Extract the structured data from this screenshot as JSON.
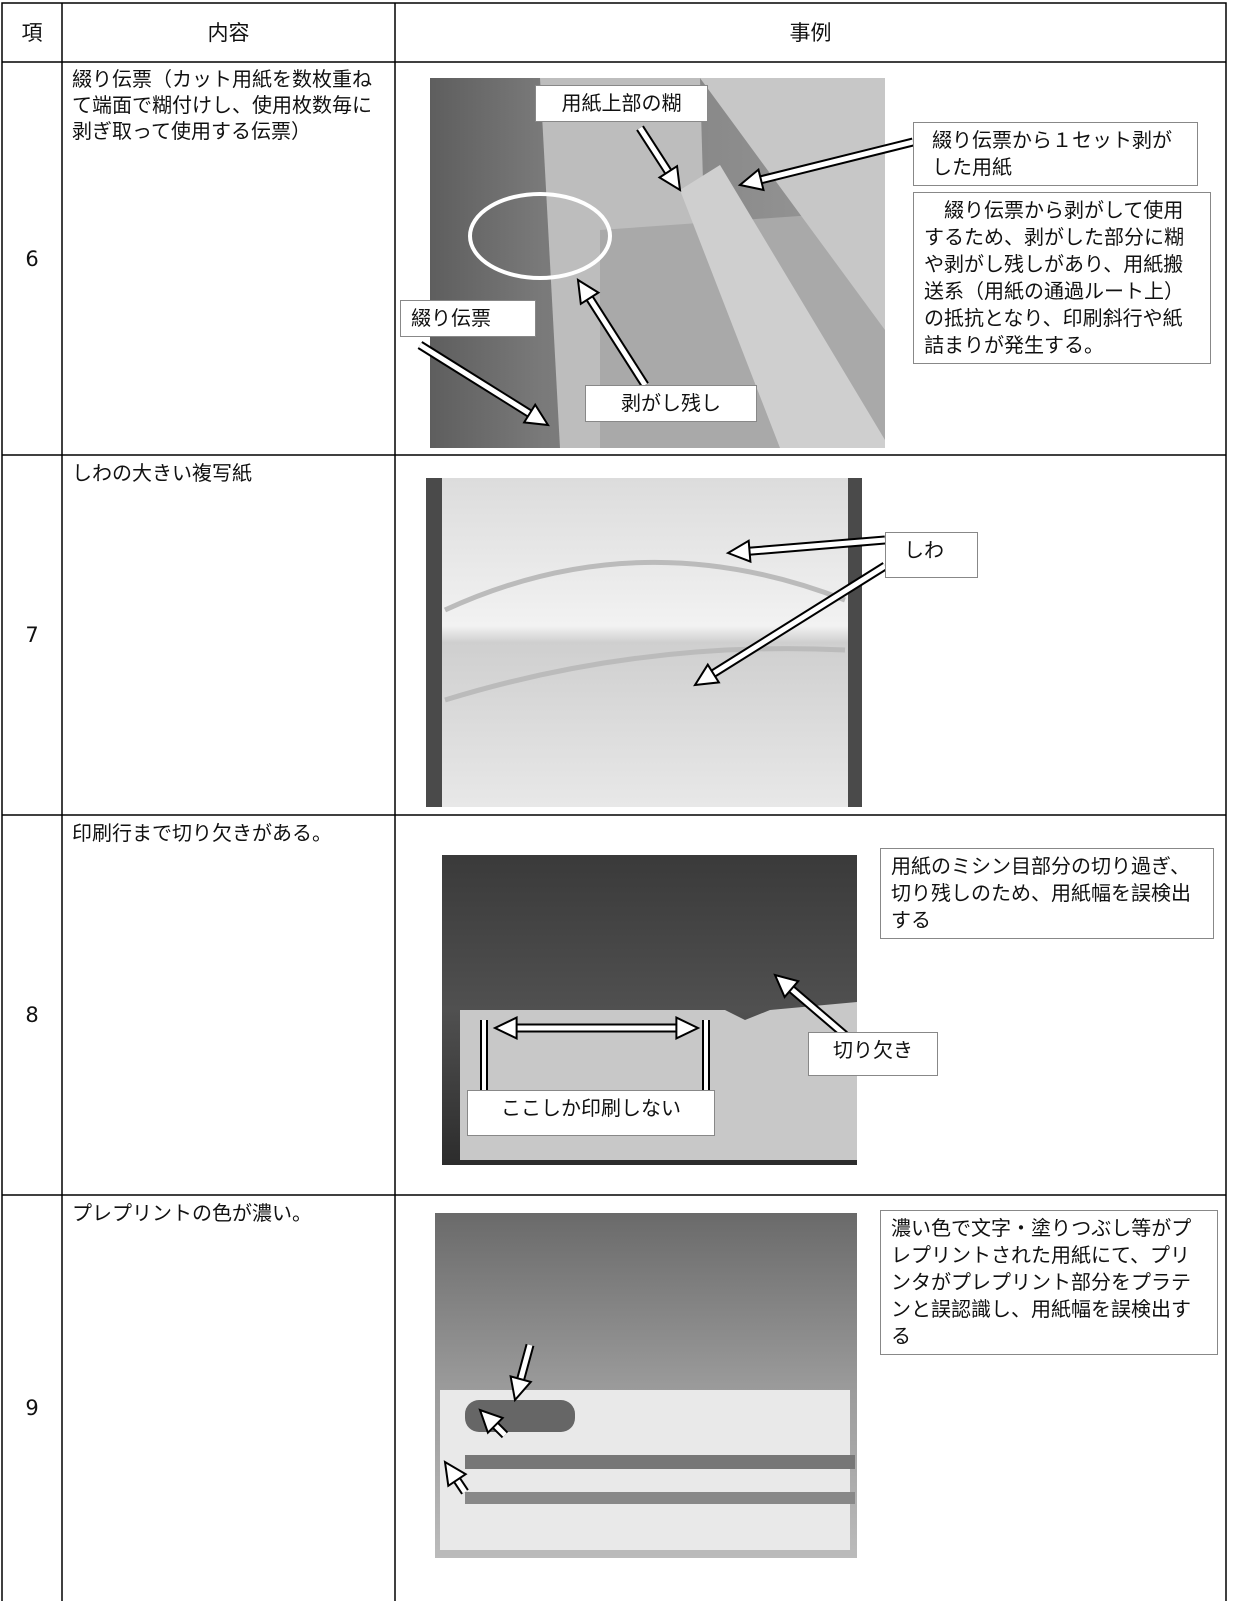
{
  "table": {
    "header": [
      "項",
      "内容",
      "事例"
    ],
    "rows": [
      {
        "no": 6,
        "content": "綴り伝票（カット用紙を数枚重ねて端面で糊付けし、使用枚数毎に剥ぎ取って使用する伝票）",
        "callouts": [
          "用紙上部の糊",
          "綴り伝票から１セット剥がした用紙",
          "綴り伝票から剥がして使用するため、剥がした部分に糊や剥がし残しがあり、用紙搬送系（用紙の通過ルート上）の抵抗となり、印刷斜行や紙詰まりが発生する。",
          "綴り伝票",
          "剥がし残し"
        ]
      },
      {
        "no": 7,
        "content": "しわの大きい複写紙",
        "callouts": [
          "しわ"
        ]
      },
      {
        "no": 8,
        "content": "印刷行まで切り欠きがある。",
        "callouts": [
          "用紙のミシン目部分の切り過ぎ、切り残しのため、用紙幅を誤検出する",
          "切り欠き",
          "ここしか印刷しない"
        ]
      },
      {
        "no": 9,
        "content": "プレプリントの色が濃い。",
        "callouts": [
          "濃い色で文字・塗りつぶし等がプレプリントされた用紙にて、プリンタがプレプリント部分をプラテンと誤認識し、用紙幅を誤検出する"
        ]
      }
    ]
  }
}
